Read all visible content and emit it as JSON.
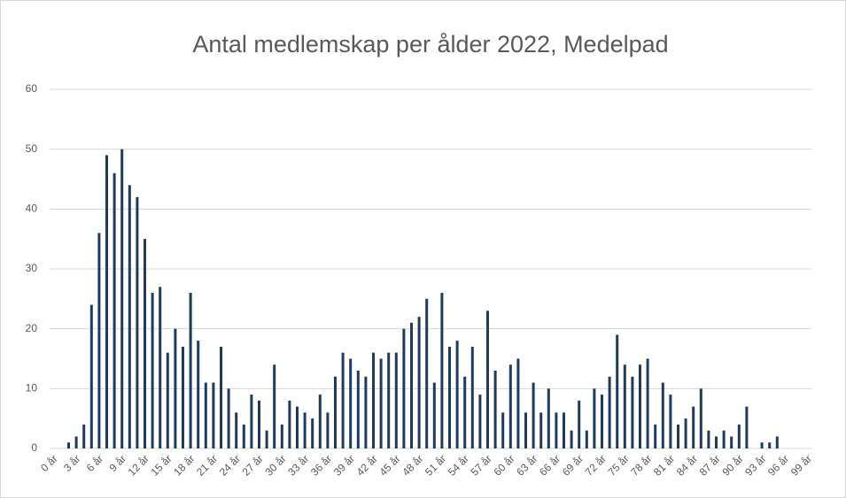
{
  "chart_data": {
    "type": "bar",
    "title": "Antal medlemskap per ålder 2022, Medelpad",
    "categories": [
      "0 år",
      null,
      null,
      "3 år",
      null,
      null,
      "6 år",
      null,
      null,
      "9 år",
      null,
      null,
      "12 år",
      null,
      null,
      "15 år",
      null,
      null,
      "18 år",
      null,
      null,
      "21 år",
      null,
      null,
      "24 år",
      null,
      null,
      "27 år",
      null,
      null,
      "30 år",
      null,
      null,
      "33 år",
      null,
      null,
      "36 år",
      null,
      null,
      "39 år",
      null,
      null,
      "42 år",
      null,
      null,
      "45 år",
      null,
      null,
      "48 år",
      null,
      null,
      "51 år",
      null,
      null,
      "54 år",
      null,
      null,
      "57 år",
      null,
      null,
      "60 år",
      null,
      null,
      "63 år",
      null,
      null,
      "66 år",
      null,
      null,
      "69 år",
      null,
      null,
      "72 år",
      null,
      null,
      "75 år",
      null,
      null,
      "78 år",
      null,
      null,
      "81 år",
      null,
      null,
      "84 år",
      null,
      null,
      "87 år",
      null,
      null,
      "90 år",
      null,
      null,
      "93 år",
      null,
      null,
      "96 år",
      null,
      null,
      "99 år"
    ],
    "values": [
      0,
      0,
      1,
      2,
      4,
      24,
      36,
      49,
      46,
      50,
      44,
      42,
      35,
      26,
      27,
      16,
      20,
      17,
      26,
      18,
      11,
      11,
      17,
      10,
      6,
      4,
      9,
      8,
      3,
      14,
      4,
      8,
      7,
      6,
      5,
      9,
      6,
      12,
      16,
      15,
      13,
      12,
      16,
      15,
      16,
      16,
      20,
      21,
      22,
      25,
      11,
      26,
      17,
      18,
      12,
      17,
      9,
      23,
      13,
      6,
      14,
      15,
      6,
      11,
      6,
      10,
      6,
      6,
      3,
      8,
      3,
      10,
      9,
      12,
      19,
      14,
      12,
      14,
      15,
      4,
      11,
      9,
      4,
      5,
      7,
      10,
      3,
      2,
      3,
      2,
      4,
      7,
      0,
      1,
      1,
      2,
      0,
      0,
      0,
      0
    ],
    "color": "#1f3b5e",
    "ylim": [
      0,
      60
    ],
    "yticks": [
      0,
      10,
      20,
      30,
      40,
      50,
      60
    ],
    "grid": true
  }
}
